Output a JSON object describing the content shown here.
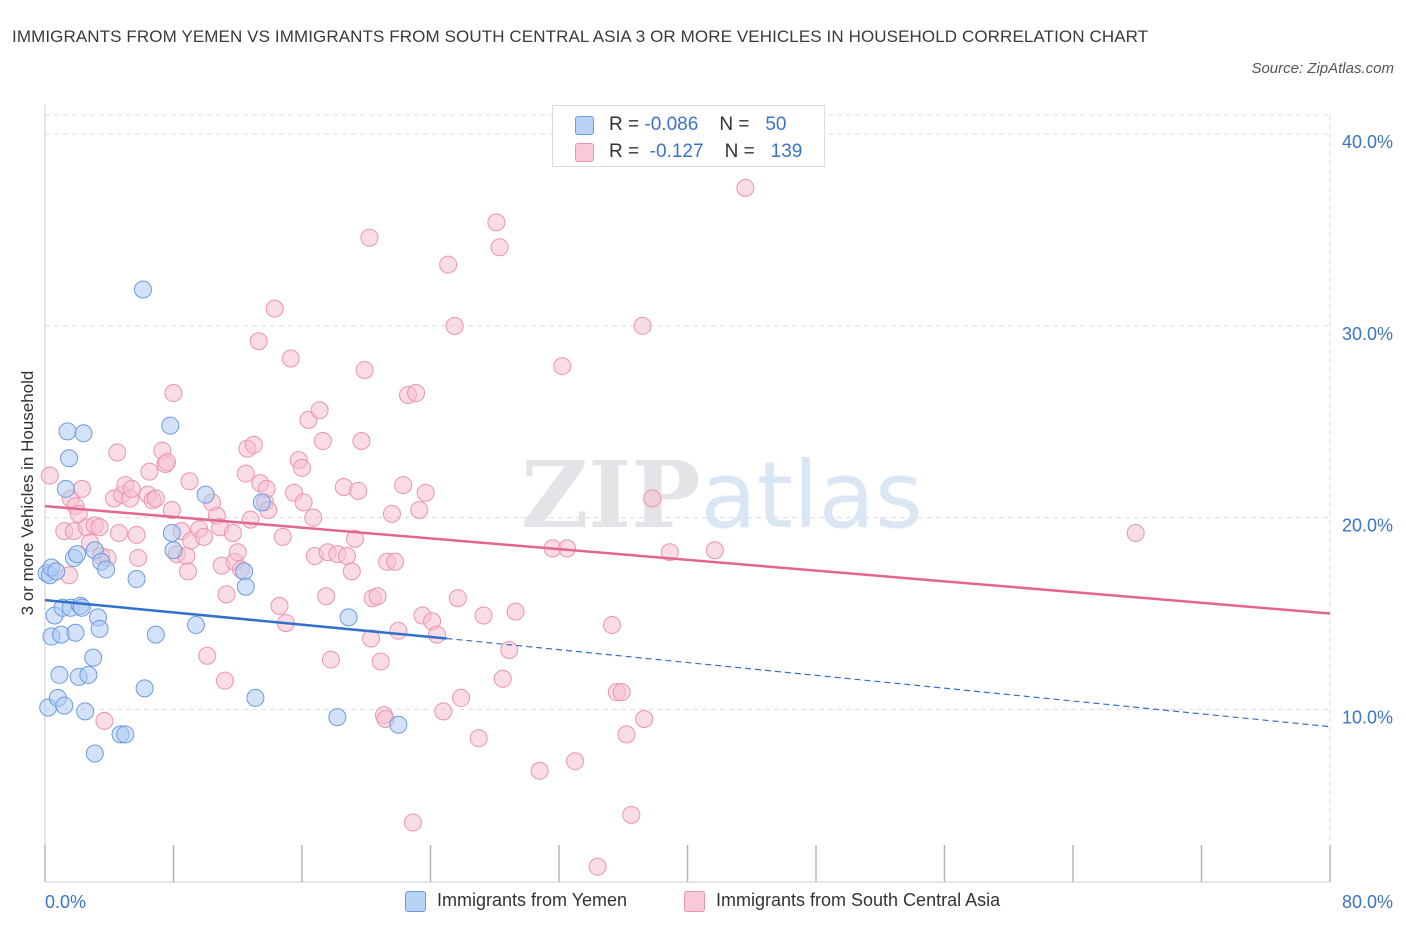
{
  "title": "IMMIGRANTS FROM YEMEN VS IMMIGRANTS FROM SOUTH CENTRAL ASIA 3 OR MORE VEHICLES IN HOUSEHOLD CORRELATION CHART",
  "source": "Source: ZipAtlas.com",
  "watermark": "ZIPatlas",
  "legend_top": {
    "rows": [
      {
        "r_label": "R =",
        "r_value": "-0.086",
        "n_label": "N =",
        "n_value": "50"
      },
      {
        "r_label": "R =",
        "r_value": "-0.127",
        "n_label": "N =",
        "n_value": "139"
      }
    ]
  },
  "legend_bottom": {
    "yemen": "Immigrants from Yemen",
    "sca": "Immigrants from South Central Asia"
  },
  "y_axis_label": "3 or more Vehicles in Household",
  "colors": {
    "yemen_fill": "#aecbf3",
    "yemen_stroke": "#6c9be0",
    "yemen_line": "#3370cc",
    "sca_fill": "#f6bfd0",
    "sca_stroke": "#ec93b0",
    "sca_line": "#e2668f",
    "tick_label": "#3b73c9",
    "grid": "#dddddd"
  },
  "chart_data": {
    "type": "scatter",
    "title": "IMMIGRANTS FROM YEMEN VS IMMIGRANTS FROM SOUTH CENTRAL ASIA 3 OR MORE VEHICLES IN HOUSEHOLD CORRELATION CHART",
    "xlabel": "",
    "ylabel": "3 or more Vehicles in Household",
    "xlim": [
      0,
      80
    ],
    "ylim": [
      1,
      41
    ],
    "x_tick_labels": [
      {
        "x": 0,
        "label": "0.0%"
      },
      {
        "x": 80,
        "label": "80.0%"
      }
    ],
    "y_tick_labels": [
      {
        "y": 10,
        "label": "10.0%"
      },
      {
        "y": 20,
        "label": "20.0%"
      },
      {
        "y": 30,
        "label": "30.0%"
      },
      {
        "y": 40,
        "label": "40.0%"
      }
    ],
    "grid": true,
    "legend_position": "top-center",
    "series": [
      {
        "name": "Immigrants from Yemen",
        "R": -0.086,
        "N": 50,
        "trend": {
          "solid": [
            [
              0,
              15.7
            ],
            [
              25,
              13.7
            ]
          ],
          "dashed": [
            [
              25,
              13.7
            ],
            [
              80,
              9.1
            ]
          ]
        },
        "points": [
          [
            0.1,
            17.1
          ],
          [
            0.2,
            10.1
          ],
          [
            0.3,
            17.0
          ],
          [
            0.4,
            13.8
          ],
          [
            0.4,
            17.4
          ],
          [
            0.6,
            14.9
          ],
          [
            0.7,
            17.2
          ],
          [
            0.8,
            10.6
          ],
          [
            0.9,
            11.8
          ],
          [
            1.0,
            13.9
          ],
          [
            1.1,
            15.3
          ],
          [
            1.2,
            10.2
          ],
          [
            1.3,
            21.5
          ],
          [
            1.4,
            24.5
          ],
          [
            1.5,
            23.1
          ],
          [
            1.6,
            15.3
          ],
          [
            1.8,
            17.9
          ],
          [
            1.9,
            14.0
          ],
          [
            2.0,
            18.1
          ],
          [
            2.1,
            11.7
          ],
          [
            2.2,
            15.4
          ],
          [
            2.3,
            15.3
          ],
          [
            2.4,
            24.4
          ],
          [
            2.5,
            9.9
          ],
          [
            2.7,
            11.8
          ],
          [
            3.0,
            12.7
          ],
          [
            3.1,
            7.7
          ],
          [
            3.1,
            18.3
          ],
          [
            3.3,
            14.8
          ],
          [
            3.4,
            14.2
          ],
          [
            3.5,
            17.7
          ],
          [
            3.8,
            17.3
          ],
          [
            4.7,
            8.7
          ],
          [
            5.0,
            8.7
          ],
          [
            5.7,
            16.8
          ],
          [
            6.1,
            31.9
          ],
          [
            6.2,
            11.1
          ],
          [
            6.9,
            13.9
          ],
          [
            7.8,
            24.8
          ],
          [
            7.9,
            19.2
          ],
          [
            8.0,
            18.3
          ],
          [
            9.4,
            14.4
          ],
          [
            10.0,
            21.2
          ],
          [
            12.4,
            17.2
          ],
          [
            12.5,
            16.4
          ],
          [
            13.1,
            10.6
          ],
          [
            13.5,
            20.8
          ],
          [
            18.2,
            9.6
          ],
          [
            18.9,
            14.8
          ],
          [
            22.0,
            9.2
          ]
        ]
      },
      {
        "name": "Immigrants from South Central Asia",
        "R": -0.127,
        "N": 139,
        "trend": {
          "solid": [
            [
              0,
              20.6
            ],
            [
              80,
              15.0
            ]
          ]
        },
        "points": [
          [
            0.3,
            22.2
          ],
          [
            1.2,
            19.3
          ],
          [
            1.5,
            17.0
          ],
          [
            1.6,
            21.0
          ],
          [
            1.8,
            19.3
          ],
          [
            1.9,
            20.6
          ],
          [
            2.1,
            20.2
          ],
          [
            2.3,
            21.5
          ],
          [
            2.6,
            19.5
          ],
          [
            2.8,
            18.7
          ],
          [
            3.1,
            19.6
          ],
          [
            3.4,
            19.5
          ],
          [
            3.5,
            18.0
          ],
          [
            3.7,
            9.4
          ],
          [
            3.9,
            17.9
          ],
          [
            4.3,
            21.0
          ],
          [
            4.5,
            23.4
          ],
          [
            4.6,
            19.2
          ],
          [
            4.8,
            21.2
          ],
          [
            5.0,
            21.7
          ],
          [
            5.3,
            21.0
          ],
          [
            5.4,
            21.5
          ],
          [
            5.7,
            19.1
          ],
          [
            5.8,
            17.9
          ],
          [
            6.4,
            21.2
          ],
          [
            6.5,
            22.4
          ],
          [
            6.7,
            20.9
          ],
          [
            6.9,
            21.0
          ],
          [
            7.3,
            23.5
          ],
          [
            7.5,
            22.8
          ],
          [
            7.6,
            22.9
          ],
          [
            7.9,
            20.4
          ],
          [
            8.0,
            26.5
          ],
          [
            8.2,
            18.1
          ],
          [
            8.5,
            19.3
          ],
          [
            8.8,
            18.0
          ],
          [
            8.9,
            17.2
          ],
          [
            9.0,
            21.9
          ],
          [
            9.1,
            18.8
          ],
          [
            9.6,
            19.4
          ],
          [
            9.9,
            19.0
          ],
          [
            10.1,
            12.8
          ],
          [
            10.4,
            20.8
          ],
          [
            10.7,
            20.1
          ],
          [
            10.9,
            19.5
          ],
          [
            11.0,
            17.5
          ],
          [
            11.2,
            11.5
          ],
          [
            11.3,
            16.0
          ],
          [
            11.7,
            19.2
          ],
          [
            11.8,
            17.7
          ],
          [
            12.0,
            18.2
          ],
          [
            12.2,
            17.3
          ],
          [
            12.5,
            22.3
          ],
          [
            12.6,
            23.6
          ],
          [
            12.8,
            19.9
          ],
          [
            13.0,
            23.8
          ],
          [
            13.3,
            29.2
          ],
          [
            13.4,
            21.8
          ],
          [
            13.7,
            20.8
          ],
          [
            13.8,
            21.5
          ],
          [
            13.9,
            20.4
          ],
          [
            14.3,
            30.9
          ],
          [
            14.6,
            15.4
          ],
          [
            14.8,
            19.0
          ],
          [
            15.0,
            14.5
          ],
          [
            15.3,
            28.3
          ],
          [
            15.5,
            21.3
          ],
          [
            15.8,
            23.0
          ],
          [
            16.0,
            22.6
          ],
          [
            16.1,
            20.8
          ],
          [
            16.4,
            25.1
          ],
          [
            16.7,
            20.0
          ],
          [
            16.8,
            18.0
          ],
          [
            17.1,
            25.6
          ],
          [
            17.3,
            24.0
          ],
          [
            17.5,
            15.9
          ],
          [
            17.6,
            18.2
          ],
          [
            17.8,
            12.6
          ],
          [
            18.2,
            18.1
          ],
          [
            18.6,
            21.6
          ],
          [
            18.8,
            18.0
          ],
          [
            19.1,
            17.2
          ],
          [
            19.3,
            18.9
          ],
          [
            19.5,
            21.4
          ],
          [
            19.7,
            24.0
          ],
          [
            19.9,
            27.7
          ],
          [
            20.2,
            34.6
          ],
          [
            20.3,
            13.7
          ],
          [
            20.4,
            15.8
          ],
          [
            20.7,
            15.9
          ],
          [
            20.9,
            12.5
          ],
          [
            21.1,
            9.7
          ],
          [
            21.2,
            9.5
          ],
          [
            21.3,
            17.7
          ],
          [
            21.6,
            20.2
          ],
          [
            21.8,
            17.7
          ],
          [
            22.0,
            14.1
          ],
          [
            22.3,
            21.7
          ],
          [
            22.6,
            26.4
          ],
          [
            22.9,
            4.1
          ],
          [
            23.1,
            26.5
          ],
          [
            23.3,
            20.4
          ],
          [
            23.5,
            14.9
          ],
          [
            23.7,
            21.3
          ],
          [
            24.1,
            14.6
          ],
          [
            24.4,
            13.9
          ],
          [
            24.8,
            9.9
          ],
          [
            25.1,
            33.2
          ],
          [
            25.5,
            30.0
          ],
          [
            25.7,
            15.8
          ],
          [
            25.9,
            10.6
          ],
          [
            27.0,
            8.5
          ],
          [
            27.3,
            14.9
          ],
          [
            28.1,
            35.4
          ],
          [
            28.3,
            34.1
          ],
          [
            28.5,
            11.6
          ],
          [
            28.9,
            13.1
          ],
          [
            29.3,
            15.1
          ],
          [
            30.8,
            6.8
          ],
          [
            31.6,
            18.4
          ],
          [
            32.2,
            27.9
          ],
          [
            32.5,
            18.4
          ],
          [
            33.0,
            7.3
          ],
          [
            34.4,
            1.8
          ],
          [
            35.3,
            14.4
          ],
          [
            35.6,
            10.9
          ],
          [
            35.9,
            10.9
          ],
          [
            36.2,
            8.7
          ],
          [
            36.5,
            4.5
          ],
          [
            37.2,
            30.0
          ],
          [
            37.3,
            9.5
          ],
          [
            37.8,
            21.0
          ],
          [
            38.9,
            18.2
          ],
          [
            41.7,
            18.3
          ],
          [
            43.6,
            37.2
          ],
          [
            67.9,
            19.2
          ]
        ]
      }
    ]
  }
}
